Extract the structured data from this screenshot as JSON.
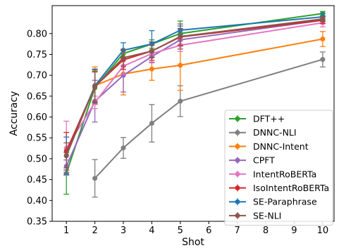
{
  "chart_data": {
    "type": "line",
    "title": "",
    "xlabel": "Shot",
    "ylabel": "Accuracy",
    "x": [
      1,
      2,
      3,
      4,
      5,
      10
    ],
    "xticks": [
      "1",
      "2",
      "3",
      "4",
      "5",
      "6",
      "7",
      "8",
      "9",
      "10"
    ],
    "yticks": [
      "0.35",
      "0.40",
      "0.45",
      "0.50",
      "0.55",
      "0.60",
      "0.65",
      "0.70",
      "0.75",
      "0.80"
    ],
    "xlim": [
      0.5,
      10.4
    ],
    "ylim": [
      0.35,
      0.867
    ],
    "grid": false,
    "legend_position": "lower-right",
    "error_bars": true,
    "series": [
      {
        "name": "DFT++",
        "color": "#2ca02c",
        "values": [
          0.465,
          0.67,
          0.752,
          0.775,
          0.8,
          0.848
        ],
        "errors": [
          0.05,
          0.04,
          0.01,
          0.01,
          0.03,
          0.005
        ]
      },
      {
        "name": "DNNC-NLI",
        "color": "#7f7f7f",
        "values": [
          null,
          0.453,
          0.526,
          0.585,
          0.638,
          0.738
        ],
        "errors": [
          null,
          0.045,
          0.025,
          0.045,
          0.037,
          0.018
        ]
      },
      {
        "name": "DNNC-Intent",
        "color": "#ff7f0e",
        "values": [
          null,
          0.675,
          0.703,
          0.715,
          0.724,
          0.787
        ],
        "errors": [
          null,
          0.045,
          0.05,
          0.027,
          0.06,
          0.018
        ]
      },
      {
        "name": "CPFT",
        "color": "#9467bd",
        "values": [
          0.482,
          0.638,
          0.7,
          0.745,
          0.785,
          0.832
        ],
        "errors": [
          0.015,
          0.05,
          0.04,
          0.015,
          0.013,
          0.008
        ]
      },
      {
        "name": "IntentRoBERTa",
        "color": "#e377c2",
        "values": [
          0.525,
          0.635,
          0.722,
          0.752,
          0.772,
          0.826
        ],
        "errors": [
          0.065,
          0.015,
          0.02,
          0.02,
          0.015,
          0.01
        ]
      },
      {
        "name": "IsoIntentRoBERTa",
        "color": "#d62728",
        "values": [
          0.518,
          0.673,
          0.737,
          0.758,
          0.792,
          0.832
        ],
        "errors": [
          0.045,
          0.035,
          0.023,
          0.022,
          0.02,
          0.008
        ]
      },
      {
        "name": "SE-Paraphrase",
        "color": "#1f77b4",
        "values": [
          0.507,
          0.675,
          0.76,
          0.775,
          0.808,
          0.84
        ],
        "errors": [
          0.045,
          0.04,
          0.018,
          0.032,
          0.01,
          0.008
        ]
      },
      {
        "name": "SE-NLI",
        "color": "#8c564b",
        "values": [
          0.508,
          0.673,
          0.742,
          0.758,
          0.793,
          0.835
        ],
        "errors": [
          0.03,
          0.04,
          0.02,
          0.015,
          0.03,
          0.006
        ]
      }
    ]
  }
}
